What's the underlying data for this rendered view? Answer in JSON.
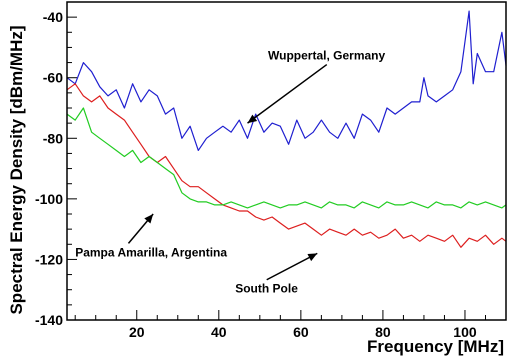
{
  "chart_data": {
    "type": "line",
    "title": "",
    "xlabel": "Frequency [MHz]",
    "ylabel": "Spectral Energy Density [dBm/MHz]",
    "xlim": [
      3,
      110
    ],
    "ylim": [
      -140,
      -35
    ],
    "x_ticks": [
      20,
      40,
      60,
      80,
      100
    ],
    "x_tick_labels": [
      "20",
      "40",
      "60",
      "80",
      "100"
    ],
    "y_ticks": [
      -140,
      -120,
      -100,
      -80,
      -60,
      -40
    ],
    "y_tick_labels": [
      "-140",
      "-120",
      "-100",
      "-80",
      "-60",
      "-40"
    ],
    "grid": false,
    "legend": "none",
    "series": [
      {
        "color": "#1f1fd0",
        "x": [
          3,
          5,
          7,
          9,
          11,
          13,
          15,
          17,
          19,
          21,
          23,
          25,
          27,
          29,
          31,
          33,
          35,
          37,
          39,
          41,
          43,
          45,
          47,
          49,
          51,
          53,
          55,
          57,
          59,
          61,
          63,
          65,
          67,
          69,
          71,
          73,
          75,
          77,
          79,
          81,
          83,
          85,
          87,
          89,
          90,
          91,
          93,
          95,
          97,
          99,
          100,
          101,
          102,
          103,
          105,
          107,
          109,
          110
        ],
        "y": [
          -60,
          -62,
          -55,
          -58,
          -63,
          -66,
          -64,
          -70,
          -62,
          -68,
          -64,
          -66,
          -72,
          -70,
          -80,
          -76,
          -84,
          -80,
          -78,
          -76,
          -78,
          -74,
          -80,
          -72,
          -78,
          -75,
          -76,
          -82,
          -74,
          -80,
          -78,
          -74,
          -78,
          -80,
          -75,
          -80,
          -72,
          -74,
          -78,
          -70,
          -72,
          -70,
          -68,
          -68,
          -60,
          -66,
          -68,
          -66,
          -64,
          -58,
          -48,
          -38,
          -62,
          -52,
          -58,
          -58,
          -45,
          -56
        ]
      },
      {
        "color": "#dd1f1f",
        "x": [
          3,
          5,
          7,
          9,
          11,
          13,
          15,
          17,
          19,
          21,
          23,
          25,
          27,
          29,
          31,
          33,
          35,
          37,
          39,
          41,
          43,
          45,
          47,
          49,
          51,
          53,
          55,
          57,
          59,
          61,
          63,
          65,
          67,
          69,
          71,
          73,
          75,
          77,
          79,
          81,
          83,
          85,
          87,
          89,
          91,
          93,
          95,
          97,
          99,
          101,
          103,
          105,
          107,
          109,
          110
        ],
        "y": [
          -64,
          -62,
          -66,
          -68,
          -66,
          -70,
          -72,
          -74,
          -78,
          -82,
          -86,
          -88,
          -86,
          -90,
          -94,
          -96,
          -96,
          -98,
          -100,
          -102,
          -103,
          -104,
          -104,
          -106,
          -107,
          -106,
          -108,
          -110,
          -109,
          -108,
          -110,
          -112,
          -110,
          -111,
          -112,
          -110,
          -112,
          -111,
          -113,
          -112,
          -110,
          -113,
          -112,
          -114,
          -112,
          -113,
          -114,
          -112,
          -116,
          -113,
          -114,
          -112,
          -115,
          -113,
          -114
        ]
      },
      {
        "color": "#22cc22",
        "x": [
          3,
          5,
          7,
          9,
          11,
          13,
          15,
          17,
          19,
          21,
          23,
          25,
          27,
          29,
          31,
          33,
          35,
          37,
          39,
          41,
          43,
          45,
          47,
          49,
          51,
          53,
          55,
          57,
          59,
          61,
          63,
          65,
          67,
          69,
          71,
          73,
          75,
          77,
          79,
          81,
          83,
          85,
          87,
          89,
          91,
          93,
          95,
          97,
          99,
          101,
          103,
          105,
          107,
          109,
          110
        ],
        "y": [
          -72,
          -74,
          -70,
          -78,
          -80,
          -82,
          -84,
          -86,
          -84,
          -88,
          -86,
          -88,
          -90,
          -92,
          -98,
          -100,
          -101,
          -101,
          -102,
          -102,
          -101,
          -102,
          -103,
          -102,
          -101,
          -102,
          -103,
          -102,
          -102,
          -101,
          -102,
          -103,
          -101,
          -102,
          -102,
          -103,
          -101,
          -102,
          -103,
          -101,
          -102,
          -102,
          -101,
          -102,
          -103,
          -101,
          -102,
          -102,
          -103,
          -101,
          -102,
          -101,
          -102,
          -103,
          -102
        ]
      }
    ],
    "annotations": [
      {
        "text": "Wuppertal, Germany",
        "x": 52,
        "y": -54,
        "arrow_to_x": 47,
        "arrow_to_y": -75
      },
      {
        "text": "Pampa Amarilla, Argentina",
        "x": 5,
        "y": -119,
        "arrow_to_x": 24,
        "arrow_to_y": -105
      },
      {
        "text": "South Pole",
        "x": 44,
        "y": -131,
        "arrow_to_x": 64,
        "arrow_to_y": -118
      }
    ]
  }
}
